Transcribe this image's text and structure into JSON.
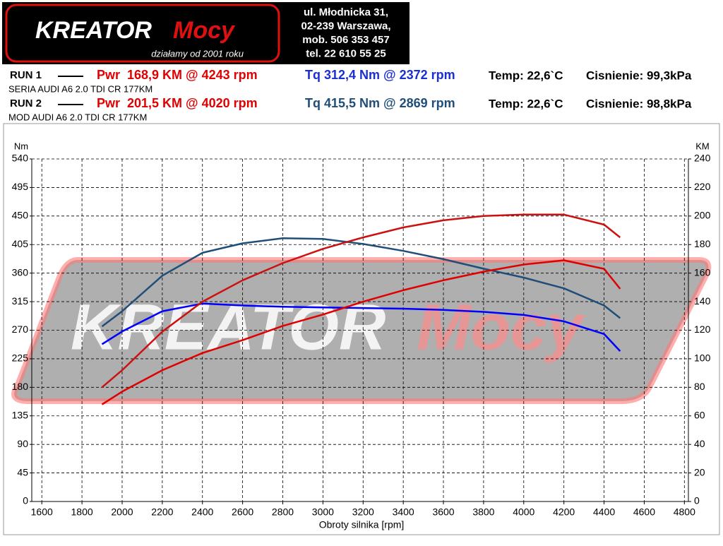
{
  "header": {
    "logo_text1": "KREATOR",
    "logo_text2": "Mocy",
    "slogan": "działamy od 2001 roku",
    "address": [
      "ul. Młodnicka 31,",
      "02-239  Warszawa,",
      "mob.  506 353 457",
      "tel.  22 610 55 25"
    ]
  },
  "runs": [
    {
      "label": "RUN 1",
      "description": "SERIA AUDI A6 2.0 TDI CR 177KM",
      "pwr": "Pwr  168,9 KM @ 4243 rpm",
      "pwr_color": "#e00000",
      "tq": "Tq 312,4 Nm @ 2372 rpm",
      "tq_color": "#1a2fd0",
      "temp": "Temp: 22,6`C",
      "pressure": "Cisnienie: 99,3kPa"
    },
    {
      "label": "RUN 2",
      "description": "MOD AUDI A6 2.0 TDI CR 177KM",
      "pwr": "Pwr  201,5 KM @ 4020 rpm",
      "pwr_color": "#e00000",
      "tq": "Tq 415,5 Nm @ 2869 rpm",
      "tq_color": "#1f4e79",
      "temp": "Temp: 22,6`C",
      "pressure": "Cisnienie: 98,8kPa"
    }
  ],
  "chart_data": {
    "type": "line",
    "watermark": {
      "text1": "KREATOR",
      "text2": "Mocy"
    },
    "ylabel": "Nm",
    "y2label": "KM",
    "xlabel": "Obroty silnika [rpm]",
    "x": [
      1900,
      2000,
      2200,
      2400,
      2600,
      2800,
      3000,
      3200,
      3400,
      3600,
      3800,
      4000,
      4200,
      4400,
      4480
    ],
    "series": [
      {
        "color": "#0000ff",
        "values": [
          248,
          268,
          300,
          312,
          309,
          307,
          306,
          305,
          304,
          302,
          299,
          294,
          284,
          264,
          237
        ]
      },
      {
        "color": "#1f4e79",
        "values": [
          276,
          300,
          356,
          392,
          407,
          415,
          414,
          406,
          395,
          382,
          367,
          353,
          336,
          309,
          289
        ]
      },
      {
        "color": "#e00000",
        "axis": "y2",
        "values": [
          68,
          77,
          92,
          104,
          113,
          123,
          131,
          140,
          148,
          155,
          161,
          166,
          169,
          163,
          149
        ]
      },
      {
        "color": "#cc1111",
        "axis": "y2",
        "values": [
          80,
          92,
          119,
          140,
          155,
          167,
          177,
          185,
          192,
          197,
          200,
          201,
          201,
          194,
          185
        ]
      }
    ],
    "xlim": [
      1550,
      4820
    ],
    "xticks": [
      1600,
      1800,
      2000,
      2200,
      2400,
      2600,
      2800,
      3000,
      3200,
      3400,
      3600,
      3800,
      4000,
      4200,
      4400,
      4600,
      4800
    ],
    "ylim": [
      0,
      540
    ],
    "yticks": [
      0,
      45,
      90,
      135,
      180,
      225,
      270,
      315,
      360,
      405,
      450,
      495,
      540
    ],
    "y2lim": [
      0,
      240
    ],
    "y2ticks": [
      0,
      20,
      40,
      60,
      80,
      100,
      120,
      140,
      160,
      180,
      200,
      220,
      240
    ],
    "grid": true
  }
}
